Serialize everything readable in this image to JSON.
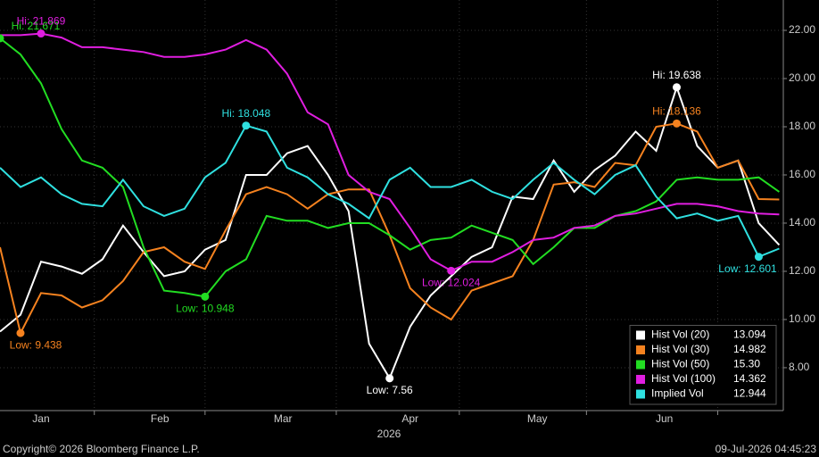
{
  "chart_data": {
    "type": "line",
    "x_axis_label": "2026",
    "footer_left": "Copyright© 2026 Bloomberg Finance L.P.",
    "footer_right": "09-Jul-2026 04:45:23",
    "xlim": [
      6,
      197
    ],
    "xticks": [
      {
        "value": 16,
        "label": "Jan"
      },
      {
        "value": 45,
        "label": "Feb"
      },
      {
        "value": 75,
        "label": "Mar"
      },
      {
        "value": 106,
        "label": "Apr"
      },
      {
        "value": 137,
        "label": "May"
      },
      {
        "value": 168,
        "label": "Jun"
      }
    ],
    "x_minor_ticks": [
      29,
      56,
      88,
      118,
      149,
      181
    ],
    "ylim": [
      6.22,
      23.26
    ],
    "yticks": [
      {
        "value": 8,
        "label": "8.00"
      },
      {
        "value": 10,
        "label": "10.00"
      },
      {
        "value": 12,
        "label": "12.00"
      },
      {
        "value": 14,
        "label": "14.00"
      },
      {
        "value": 16,
        "label": "16.00"
      },
      {
        "value": 18,
        "label": "18.00"
      },
      {
        "value": 20,
        "label": "20.00"
      },
      {
        "value": 22,
        "label": "22.00"
      }
    ],
    "grid": true,
    "legend_position": "lower-right",
    "x": [
      6,
      11,
      16,
      21,
      26,
      31,
      36,
      41,
      46,
      51,
      56,
      61,
      66,
      71,
      76,
      81,
      86,
      91,
      96,
      101,
      106,
      111,
      116,
      121,
      126,
      131,
      136,
      141,
      146,
      151,
      156,
      161,
      166,
      171,
      176,
      181,
      186,
      191,
      196
    ],
    "series": [
      {
        "name": "Hist Vol (20)",
        "color": "#ffffff",
        "legend_value": 13.094,
        "values": [
          9.5,
          10.2,
          12.4,
          12.2,
          11.9,
          12.5,
          13.9,
          12.8,
          11.8,
          12.0,
          12.9,
          13.3,
          16.0,
          16.0,
          16.9,
          17.2,
          16.0,
          14.5,
          9.0,
          7.56,
          9.7,
          11.0,
          11.8,
          12.6,
          13.0,
          15.1,
          15.0,
          16.6,
          15.3,
          16.2,
          16.8,
          17.8,
          17.0,
          19.638,
          17.2,
          16.3,
          16.6,
          14.0,
          13.094
        ],
        "annotations": [
          {
            "label": "Hi: 19.638",
            "x": 171,
            "y": 19.638
          },
          {
            "label": "Low: 7.56",
            "x": 101,
            "y": 7.56
          }
        ]
      },
      {
        "name": "Hist Vol (30)",
        "color": "#f5821f",
        "legend_value": 14.982,
        "values": [
          13.0,
          9.438,
          11.1,
          11.0,
          10.5,
          10.8,
          11.6,
          12.8,
          13.0,
          12.4,
          12.1,
          13.7,
          15.2,
          15.5,
          15.2,
          14.6,
          15.2,
          15.4,
          15.4,
          13.5,
          11.3,
          10.5,
          10.0,
          11.2,
          11.5,
          11.8,
          13.3,
          15.6,
          15.7,
          15.5,
          16.5,
          16.4,
          18.0,
          18.136,
          17.8,
          16.3,
          16.6,
          15.0,
          14.982
        ],
        "annotations": [
          {
            "label": "Hi: 18.136",
            "x": 171,
            "y": 18.136
          },
          {
            "label": "Low: 9.438",
            "x": 11,
            "y": 9.438
          }
        ]
      },
      {
        "name": "Hist Vol (50)",
        "color": "#22dd22",
        "legend_value": {
          "value": 15.3,
          "label": "15.30"
        },
        "values": [
          21.671,
          21.0,
          19.8,
          17.9,
          16.6,
          16.3,
          15.5,
          13.0,
          11.2,
          11.1,
          10.948,
          12.0,
          12.5,
          14.3,
          14.1,
          14.1,
          13.8,
          14.0,
          14.0,
          13.5,
          12.9,
          13.3,
          13.4,
          13.9,
          13.6,
          13.3,
          12.3,
          13.0,
          13.8,
          13.8,
          14.3,
          14.5,
          14.9,
          15.8,
          15.9,
          15.8,
          15.8,
          15.9,
          15.3
        ],
        "annotations": [
          {
            "label": "Hi: 21.671",
            "x": 6,
            "y": 21.671
          },
          {
            "label": "Low: 10.948",
            "x": 56,
            "y": 10.948
          }
        ]
      },
      {
        "name": "Hist Vol (100)",
        "color": "#e01ee0",
        "legend_value": 14.362,
        "values": [
          21.8,
          21.8,
          21.869,
          21.7,
          21.3,
          21.3,
          21.2,
          21.1,
          20.9,
          20.9,
          21.0,
          21.2,
          21.6,
          21.2,
          20.2,
          18.6,
          18.1,
          16.0,
          15.3,
          15.0,
          13.8,
          12.5,
          12.024,
          12.4,
          12.4,
          12.8,
          13.3,
          13.4,
          13.8,
          13.9,
          14.3,
          14.4,
          14.6,
          14.8,
          14.8,
          14.7,
          14.5,
          14.4,
          14.362
        ],
        "annotations": [
          {
            "label": "Hi: 21.869",
            "x": 16,
            "y": 21.869
          },
          {
            "label": "Low: 12.024",
            "x": 116,
            "y": 12.024
          }
        ]
      },
      {
        "name": "Implied Vol",
        "color": "#2fe0e0",
        "legend_value": 12.944,
        "values": [
          16.3,
          15.5,
          15.9,
          15.2,
          14.8,
          14.7,
          15.8,
          14.7,
          14.3,
          14.6,
          15.9,
          16.5,
          18.048,
          17.8,
          16.3,
          15.9,
          15.2,
          14.8,
          14.2,
          15.8,
          16.3,
          15.5,
          15.5,
          15.8,
          15.3,
          15.0,
          15.8,
          16.5,
          15.8,
          15.2,
          16.0,
          16.4,
          15.1,
          14.2,
          14.4,
          14.1,
          14.3,
          12.601,
          12.944
        ],
        "annotations": [
          {
            "label": "Hi: 18.048",
            "x": 66,
            "y": 18.048
          },
          {
            "label": "Low: 12.601",
            "x": 191,
            "y": 12.601
          }
        ]
      }
    ]
  }
}
